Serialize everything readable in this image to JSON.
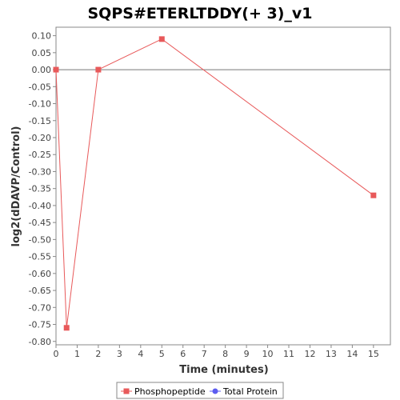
{
  "chart_data": {
    "type": "line",
    "title": "SQPS#ETERLTDDY(+ 3)_v1",
    "xlabel": "Time (minutes)",
    "ylabel": "log2(dDAVP/Control)",
    "xlim": [
      0,
      15.8
    ],
    "ylim": [
      -0.81,
      0.125
    ],
    "x_ticks": [
      0,
      1,
      2,
      3,
      4,
      5,
      6,
      7,
      8,
      9,
      10,
      11,
      12,
      13,
      14,
      15
    ],
    "x_tick_labels": [
      "0",
      "1",
      "2",
      "3",
      "4",
      "5",
      "6",
      "7",
      "8",
      "9",
      "10",
      "11",
      "12",
      "13",
      "14",
      "15"
    ],
    "y_ticks": [
      0.1,
      0.05,
      0.0,
      -0.05,
      -0.1,
      -0.15,
      -0.2,
      -0.25,
      -0.3,
      -0.35,
      -0.4,
      -0.45,
      -0.5,
      -0.55,
      -0.6,
      -0.65,
      -0.7,
      -0.75,
      -0.8
    ],
    "y_tick_labels": [
      "0.10",
      "0.05",
      "0.00",
      "-0.05",
      "-0.10",
      "-0.15",
      "-0.20",
      "-0.25",
      "-0.30",
      "-0.35",
      "-0.40",
      "-0.45",
      "-0.50",
      "-0.55",
      "-0.60",
      "-0.65",
      "-0.70",
      "-0.75",
      "-0.80"
    ],
    "zero_line": true,
    "grid": false,
    "legend_position": "bottom-center",
    "series": [
      {
        "name": "Phosphopeptide",
        "color": "#e8595a",
        "marker": "square",
        "x": [
          0,
          0.5,
          2,
          5,
          15
        ],
        "y": [
          0.0,
          -0.76,
          0.0,
          0.09,
          -0.37
        ]
      },
      {
        "name": "Total Protein",
        "color": "#5c5cf0",
        "marker": "circle",
        "x": [],
        "y": []
      }
    ]
  }
}
